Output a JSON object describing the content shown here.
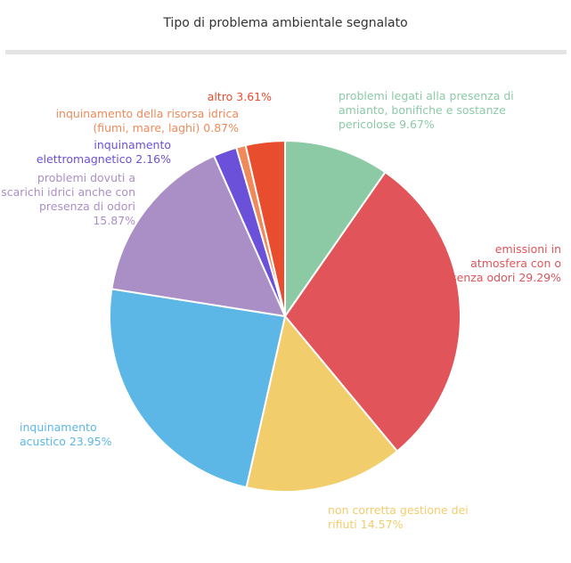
{
  "chart_data": {
    "type": "pie",
    "title": "Tipo di problema ambientale segnalato",
    "categories": [
      "problemi legati alla presenza di amianto, bonifiche e sostanze pericolose",
      "emissioni in atmosfera con o senza odori",
      "non corretta gestione dei rifiuti",
      "inquinamento acustico",
      "problemi dovuti a scarichi idrici anche con presenza di odori",
      "inquinamento elettromagnetico",
      "inquinamento della risorsa idrica (fiumi, mare, laghi)",
      "altro"
    ],
    "values": [
      9.67,
      29.29,
      14.57,
      23.95,
      15.87,
      2.16,
      0.87,
      3.61
    ],
    "value_labels": [
      "9.67%",
      "29.29%",
      "14.57%",
      "23.95%",
      "15.87%",
      "2.16%",
      "0.87%",
      "3.61%"
    ],
    "colors": [
      "#8ccaa6",
      "#e0545a",
      "#f1cd6c",
      "#5cb7e7",
      "#aa8fc6",
      "#6b50da",
      "#f08a5a",
      "#e84e2d"
    ]
  }
}
